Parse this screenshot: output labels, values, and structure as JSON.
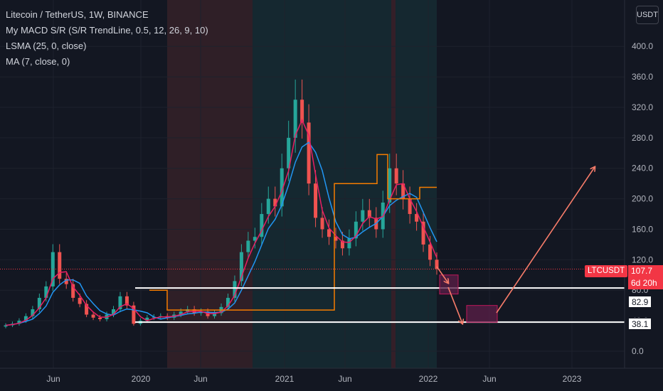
{
  "legend": {
    "symbol_line": "Litecoin / TetherUS, 1W, BINANCE",
    "indicator_1": "My MACD S/R (S/R TrendLine, 0.5, 12, 26, 9, 10)",
    "indicator_2": "LSMA (25, 0, close)",
    "indicator_3": "MA (7, close, 0)"
  },
  "currency": "USDT",
  "symbol_badge": "LTCUSDT",
  "current_price": "107.7",
  "countdown": "6d 20h",
  "level_upper": "82.9",
  "level_lower": "38.1",
  "colors": {
    "background": "#131722",
    "up": "#26a69a",
    "down": "#ef5350",
    "lsma": "#2196f3",
    "sr_line": "#f57c00",
    "ma": "#e91e63",
    "arrow": "#f77c6a",
    "zone_fill": "#5c1f48",
    "zone_stroke": "#c2185b"
  },
  "chart_data": {
    "type": "candlestick",
    "y_axis": {
      "ticks": [
        "0.0",
        "40.0",
        "80.0",
        "120.0",
        "160.0",
        "200.0",
        "240.0",
        "280.0",
        "320.0",
        "360.0",
        "400.0"
      ],
      "range": [
        -10,
        430
      ]
    },
    "x_axis": {
      "ticks": [
        "Jun",
        "2020",
        "Jun",
        "2021",
        "Jun",
        "2022",
        "Jun",
        "2023"
      ]
    },
    "weekly_closes_approx": [
      34,
      36,
      40,
      46,
      55,
      70,
      85,
      130,
      95,
      88,
      70,
      62,
      48,
      44,
      42,
      48,
      55,
      72,
      60,
      36,
      40,
      44,
      45,
      46,
      44,
      48,
      52,
      55,
      50,
      52,
      46,
      50,
      58,
      70,
      92,
      130,
      145,
      150,
      180,
      200,
      190,
      240,
      280,
      330,
      300,
      220,
      175,
      160,
      150,
      145,
      135,
      148,
      170,
      185,
      175,
      160,
      195,
      240,
      220,
      200,
      180,
      170,
      140,
      120,
      108
    ],
    "price_levels": [
      82.9,
      38.1
    ],
    "last_price": 107.7,
    "annotations": {
      "zone_1": [
        75,
        100
      ],
      "zone_2": [
        38,
        60
      ],
      "arrow_target": 242
    }
  }
}
